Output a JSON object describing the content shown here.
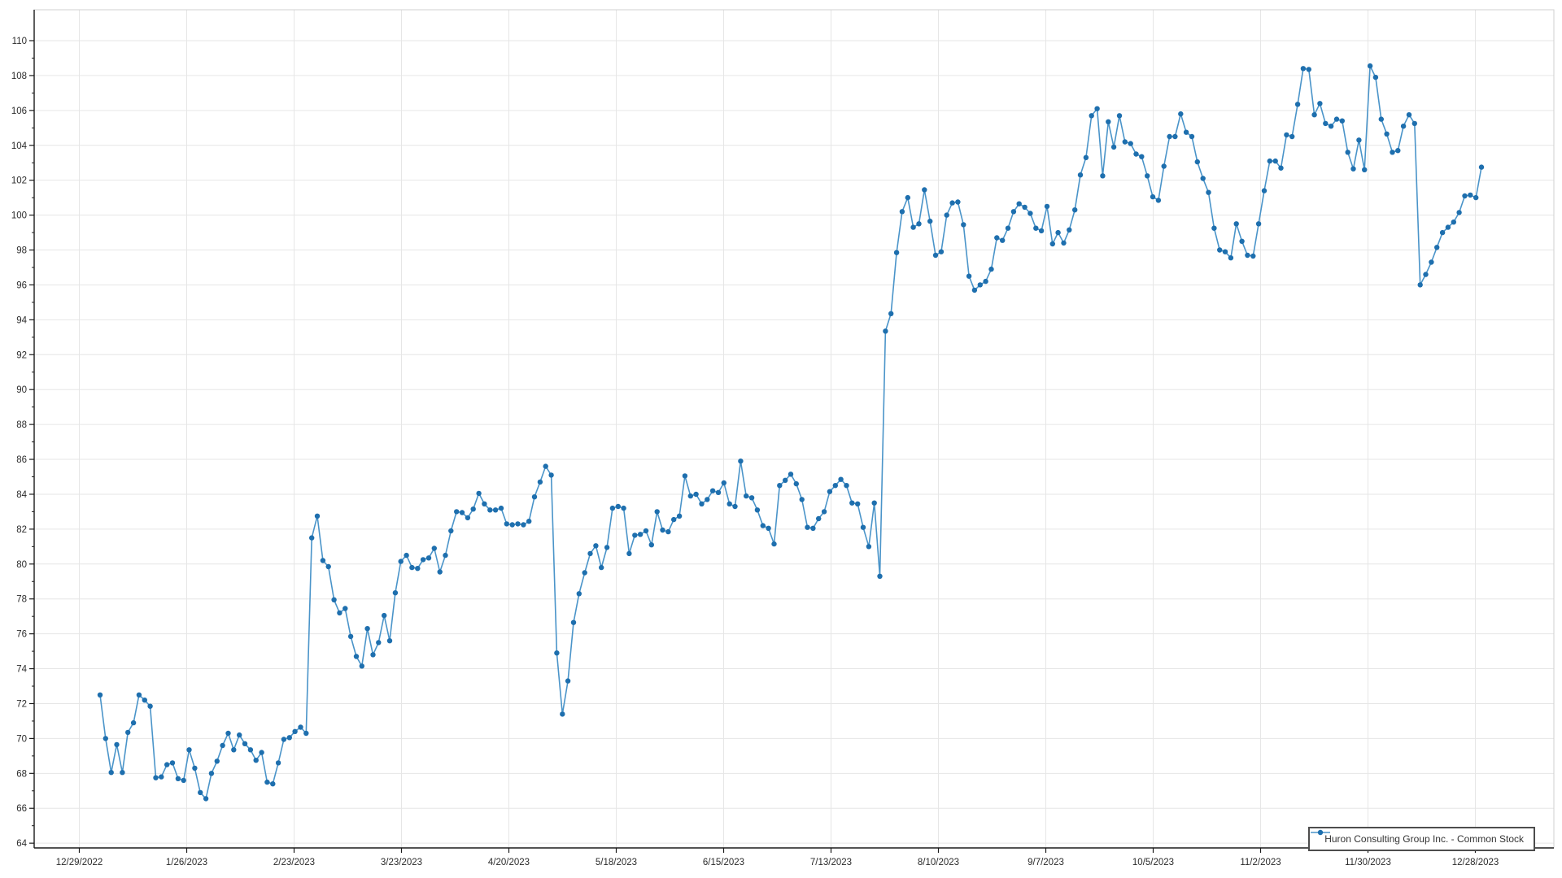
{
  "chart_data": {
    "type": "line",
    "title": "",
    "xlabel": "",
    "ylabel": "",
    "x_axis": {
      "tick_labels": [
        "12/29/2022",
        "1/26/2023",
        "2/23/2023",
        "3/23/2023",
        "4/20/2023",
        "5/18/2023",
        "6/15/2023",
        "7/13/2023",
        "8/10/2023",
        "9/7/2023",
        "10/5/2023",
        "11/2/2023",
        "11/30/2023",
        "12/28/2023"
      ]
    },
    "y_axis": {
      "tick_min": 64,
      "tick_max": 110,
      "tick_step": 2,
      "minor_tick_step": 1,
      "ylim": [
        63.5,
        111.8
      ]
    },
    "grid": {
      "major": true,
      "minor": false,
      "color": "#e6e6e6"
    },
    "legend": {
      "position": "bottom-right",
      "label": "Huron Consulting Group Inc. - Common Stock",
      "border_color": "#4d4d4d"
    },
    "series": [
      {
        "name": "Huron Consulting Group Inc. - Common Stock",
        "frequency": "daily trading-day closes",
        "date_range": "1/3/2023 to 12/29/2023",
        "line_color": "#4a94c9",
        "marker_color": "#1e6fae",
        "values": [
          72.5,
          70.0,
          68.05,
          69.65,
          68.05,
          70.35,
          70.9,
          72.5,
          72.2,
          71.85,
          67.75,
          67.8,
          68.5,
          68.6,
          67.7,
          67.6,
          69.35,
          68.3,
          66.9,
          66.55,
          68.0,
          68.7,
          69.6,
          70.3,
          69.35,
          70.2,
          69.7,
          69.35,
          68.75,
          69.2,
          67.5,
          67.4,
          68.6,
          69.95,
          70.05,
          70.4,
          70.65,
          70.3,
          81.5,
          82.75,
          80.2,
          79.85,
          77.95,
          77.2,
          77.45,
          75.85,
          74.7,
          74.15,
          76.3,
          74.8,
          75.5,
          77.05,
          75.6,
          78.35,
          80.15,
          80.5,
          79.8,
          79.75,
          80.25,
          80.35,
          80.9,
          79.55,
          80.5,
          81.9,
          83.0,
          82.95,
          82.65,
          83.15,
          84.05,
          83.45,
          83.1,
          83.1,
          83.2,
          82.3,
          82.25,
          82.3,
          82.25,
          82.45,
          83.85,
          84.7,
          85.6,
          85.1,
          74.9,
          71.4,
          73.3,
          76.65,
          78.3,
          79.5,
          80.6,
          81.05,
          79.8,
          80.95,
          83.2,
          83.3,
          83.2,
          80.6,
          81.65,
          81.7,
          81.9,
          81.1,
          83.0,
          81.95,
          81.85,
          82.55,
          82.75,
          85.05,
          83.9,
          84.0,
          83.45,
          83.7,
          84.2,
          84.1,
          84.65,
          83.45,
          83.3,
          85.9,
          83.9,
          83.8,
          83.1,
          82.2,
          82.05,
          81.15,
          84.5,
          84.8,
          85.15,
          84.6,
          83.7,
          82.1,
          82.05,
          82.6,
          83.0,
          84.15,
          84.5,
          84.85,
          84.5,
          83.5,
          83.45,
          82.1,
          81.0,
          83.5,
          79.3,
          93.35,
          94.35,
          97.85,
          100.2,
          101.0,
          99.3,
          99.5,
          101.45,
          99.65,
          97.7,
          97.9,
          100.0,
          100.7,
          100.75,
          99.45,
          96.5,
          95.7,
          96.0,
          96.2,
          96.9,
          98.7,
          98.55,
          99.25,
          100.2,
          100.65,
          100.45,
          100.1,
          99.25,
          99.1,
          100.5,
          98.35,
          99.0,
          98.4,
          99.15,
          100.3,
          102.3,
          103.3,
          105.7,
          106.1,
          102.25,
          105.35,
          103.9,
          105.7,
          104.2,
          104.1,
          103.5,
          103.35,
          102.25,
          101.05,
          100.85,
          102.8,
          104.5,
          104.5,
          105.8,
          104.75,
          104.5,
          103.05,
          102.1,
          101.3,
          99.25,
          98.0,
          97.9,
          97.55,
          99.5,
          98.5,
          97.7,
          97.65,
          99.5,
          101.4,
          103.1,
          103.1,
          102.7,
          104.6,
          104.5,
          106.35,
          108.4,
          108.35,
          105.75,
          106.4,
          105.25,
          105.1,
          105.5,
          105.4,
          103.6,
          102.65,
          104.3,
          102.6,
          108.55,
          107.9,
          105.5,
          104.65,
          103.6,
          103.7,
          105.1,
          105.75,
          105.25,
          96.0,
          96.6,
          97.3,
          98.15,
          99.0,
          99.3,
          99.6,
          100.15,
          101.1,
          101.15,
          101.0,
          102.75
        ]
      }
    ],
    "colors": {
      "plot_background": "#ffffff",
      "gridline": "#e6e6e6",
      "axis_line": "#1a1a1a",
      "tick_label": "#2b2b2b",
      "frame": "#d0d0d0"
    }
  }
}
